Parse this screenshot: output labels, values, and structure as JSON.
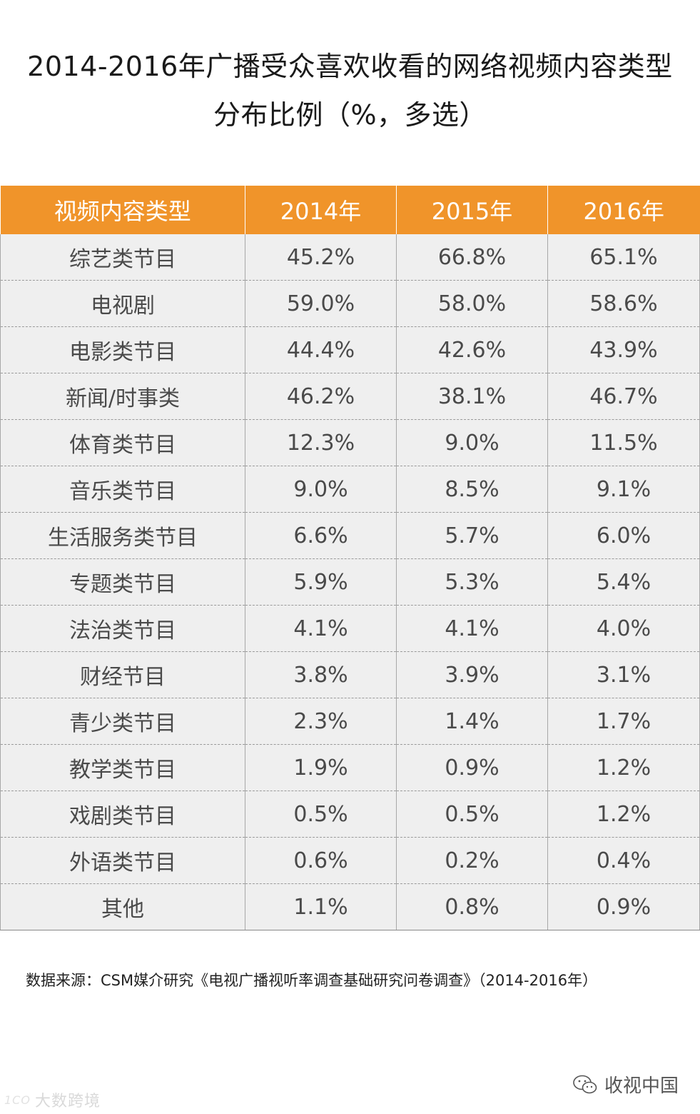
{
  "title": {
    "line1": "2014-2016年广播受众喜欢收看的网络视频内容类型",
    "line2": "分布比例（%，多选）"
  },
  "table": {
    "headers": [
      "视频内容类型",
      "2014年",
      "2015年",
      "2016年"
    ],
    "rows": [
      [
        "综艺类节目",
        "45.2%",
        "66.8%",
        "65.1%"
      ],
      [
        "电视剧",
        "59.0%",
        "58.0%",
        "58.6%"
      ],
      [
        "电影类节目",
        "44.4%",
        "42.6%",
        "43.9%"
      ],
      [
        "新闻/时事类",
        "46.2%",
        "38.1%",
        "46.7%"
      ],
      [
        "体育类节目",
        "12.3%",
        "9.0%",
        "11.5%"
      ],
      [
        "音乐类节目",
        "9.0%",
        "8.5%",
        "9.1%"
      ],
      [
        "生活服务类节目",
        "6.6%",
        "5.7%",
        "6.0%"
      ],
      [
        "专题类节目",
        "5.9%",
        "5.3%",
        "5.4%"
      ],
      [
        "法治类节目",
        "4.1%",
        "4.1%",
        "4.0%"
      ],
      [
        "财经节目",
        "3.8%",
        "3.9%",
        "3.1%"
      ],
      [
        "青少类节目",
        "2.3%",
        "1.4%",
        "1.7%"
      ],
      [
        "教学类节目",
        "1.9%",
        "0.9%",
        "1.2%"
      ],
      [
        "戏剧类节目",
        "0.5%",
        "0.5%",
        "1.2%"
      ],
      [
        "外语类节目",
        "0.6%",
        "0.2%",
        "0.4%"
      ],
      [
        "其他",
        "1.1%",
        "0.8%",
        "0.9%"
      ]
    ]
  },
  "chart_data": {
    "type": "table",
    "title": "2014-2016年广播受众喜欢收看的网络视频内容类型分布比例（%，多选）",
    "columns": [
      "视频内容类型",
      "2014年",
      "2015年",
      "2016年"
    ],
    "categories": [
      "综艺类节目",
      "电视剧",
      "电影类节目",
      "新闻/时事类",
      "体育类节目",
      "音乐类节目",
      "生活服务类节目",
      "专题类节目",
      "法治类节目",
      "财经节目",
      "青少类节目",
      "教学类节目",
      "戏剧类节目",
      "外语类节目",
      "其他"
    ],
    "series": [
      {
        "name": "2014年",
        "values": [
          45.2,
          59.0,
          44.4,
          46.2,
          12.3,
          9.0,
          6.6,
          5.9,
          4.1,
          3.8,
          2.3,
          1.9,
          0.5,
          0.6,
          1.1
        ]
      },
      {
        "name": "2015年",
        "values": [
          66.8,
          58.0,
          42.6,
          38.1,
          9.0,
          8.5,
          5.7,
          5.3,
          4.1,
          3.9,
          1.4,
          0.9,
          0.5,
          0.2,
          0.8
        ]
      },
      {
        "name": "2016年",
        "values": [
          65.1,
          58.6,
          43.9,
          46.7,
          11.5,
          9.1,
          6.0,
          5.4,
          4.0,
          3.1,
          1.7,
          1.2,
          1.2,
          0.4,
          0.9
        ]
      }
    ]
  },
  "source": "数据来源：CSM媒介研究《电视广播视听率调查基础研究问卷调查》（2014-2016年）",
  "watermark": {
    "left_logo": "1CO",
    "left": "大数跨境",
    "right": "收视中国",
    "right_icon": "wechat-icon"
  },
  "colors": {
    "header_bg": "#f0942a",
    "header_text": "#ffffff",
    "row_bg": "#efefef"
  }
}
